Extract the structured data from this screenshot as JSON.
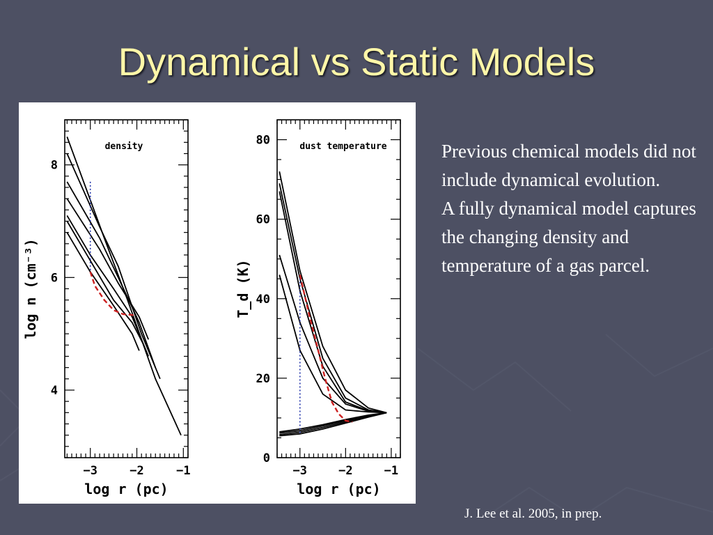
{
  "slide": {
    "title": "Dynamical vs Static Models",
    "text": [
      "Previous chemical models did not include dynamical evolution.",
      "A fully dynamical model captures the changing density and temperature of a gas parcel."
    ],
    "citation": "J. Lee et al. 2005, in prep."
  },
  "colors": {
    "background": "#4d5063",
    "title": "#fff7a8",
    "text": "#ffffff",
    "curve": "#000000",
    "dashed_track": "#cc2222",
    "dotted_track": "#2233aa"
  },
  "chart_data": [
    {
      "type": "line",
      "annotation": "density",
      "xlabel": "log r (pc)",
      "ylabel": "log n (cm⁻³)",
      "xlim": [
        -3.55,
        -0.9
      ],
      "ylim": [
        2.8,
        8.8
      ],
      "xticks": [
        -3,
        -2,
        -1
      ],
      "yticks": [
        4,
        6,
        8
      ],
      "grid": false,
      "series": [
        {
          "style": "solid",
          "points": [
            [
              -3.5,
              8.5
            ],
            [
              -2.7,
              6.7
            ],
            [
              -2.2,
              5.6
            ],
            [
              -1.6,
              4.2
            ],
            [
              -1.05,
              3.2
            ]
          ]
        },
        {
          "style": "solid",
          "points": [
            [
              -3.5,
              8.2
            ],
            [
              -2.8,
              6.9
            ],
            [
              -2.4,
              6.2
            ],
            [
              -1.9,
              5.0
            ],
            [
              -1.5,
              4.2
            ]
          ]
        },
        {
          "style": "solid",
          "points": [
            [
              -3.5,
              7.7
            ],
            [
              -2.8,
              6.7
            ],
            [
              -2.4,
              6.0
            ],
            [
              -1.95,
              5.2
            ],
            [
              -1.6,
              4.4
            ]
          ]
        },
        {
          "style": "solid",
          "points": [
            [
              -3.5,
              7.4
            ],
            [
              -2.8,
              6.5
            ],
            [
              -2.4,
              5.9
            ],
            [
              -1.95,
              5.3
            ],
            [
              -1.75,
              4.9
            ]
          ]
        },
        {
          "style": "solid",
          "points": [
            [
              -3.5,
              7.1
            ],
            [
              -3.0,
              6.4
            ],
            [
              -2.5,
              5.8
            ],
            [
              -2.1,
              5.3
            ],
            [
              -1.75,
              4.6
            ]
          ]
        },
        {
          "style": "solid",
          "points": [
            [
              -3.5,
              7.0
            ],
            [
              -3.0,
              6.3
            ],
            [
              -2.5,
              5.6
            ],
            [
              -2.1,
              5.2
            ],
            [
              -1.85,
              4.8
            ]
          ]
        },
        {
          "style": "solid",
          "points": [
            [
              -3.5,
              6.8
            ],
            [
              -3.0,
              6.1
            ],
            [
              -2.5,
              5.5
            ],
            [
              -2.1,
              5.0
            ],
            [
              -1.95,
              4.7
            ]
          ]
        },
        {
          "style": "dotted",
          "color": "#2233aa",
          "points": [
            [
              -3.0,
              7.7
            ],
            [
              -3.0,
              6.1
            ]
          ]
        },
        {
          "style": "dashed",
          "color": "#cc2222",
          "points": [
            [
              -3.0,
              6.1
            ],
            [
              -2.9,
              5.85
            ],
            [
              -2.7,
              5.6
            ],
            [
              -2.5,
              5.42
            ],
            [
              -2.3,
              5.35
            ],
            [
              -2.05,
              5.33
            ]
          ]
        }
      ]
    },
    {
      "type": "line",
      "annotation": "dust temperature",
      "xlabel": "log r (pc)",
      "ylabel": "T_d (K)",
      "xlim": [
        -3.5,
        -0.8
      ],
      "ylim": [
        0,
        85
      ],
      "xticks": [
        -3,
        -2,
        -1
      ],
      "yticks": [
        0,
        20,
        40,
        60,
        80
      ],
      "grid": false,
      "series": [
        {
          "style": "solid",
          "points": [
            [
              -3.45,
              72
            ],
            [
              -3.0,
              47
            ],
            [
              -2.5,
              28
            ],
            [
              -2.0,
              17
            ],
            [
              -1.5,
              12.5
            ],
            [
              -1.1,
              11.3
            ]
          ]
        },
        {
          "style": "solid",
          "points": [
            [
              -3.45,
              69
            ],
            [
              -3.0,
              45
            ],
            [
              -2.5,
              25
            ],
            [
              -2.0,
              15
            ],
            [
              -1.5,
              12
            ],
            [
              -1.1,
              11.3
            ]
          ]
        },
        {
          "style": "solid",
          "points": [
            [
              -3.45,
              67
            ],
            [
              -3.0,
              42
            ],
            [
              -2.5,
              23
            ],
            [
              -2.0,
              14
            ],
            [
              -1.5,
              11.8
            ],
            [
              -1.1,
              11.3
            ]
          ]
        },
        {
          "style": "solid",
          "points": [
            [
              -3.45,
              51
            ],
            [
              -3.0,
              34
            ],
            [
              -2.5,
              20
            ],
            [
              -2.0,
              13.5
            ],
            [
              -1.5,
              11.7
            ],
            [
              -1.1,
              11.3
            ]
          ]
        },
        {
          "style": "solid",
          "points": [
            [
              -3.45,
              46
            ],
            [
              -3.0,
              27
            ],
            [
              -2.5,
              16
            ],
            [
              -2.0,
              12
            ],
            [
              -1.5,
              11.5
            ],
            [
              -1.1,
              11.3
            ]
          ]
        },
        {
          "style": "solid",
          "points": [
            [
              -3.45,
              6.5
            ],
            [
              -3.0,
              7.2
            ],
            [
              -2.5,
              8.3
            ],
            [
              -2.0,
              9.6
            ],
            [
              -1.5,
              10.7
            ],
            [
              -1.1,
              11.3
            ]
          ]
        },
        {
          "style": "solid",
          "points": [
            [
              -3.45,
              6.2
            ],
            [
              -3.0,
              6.8
            ],
            [
              -2.5,
              8.0
            ],
            [
              -2.0,
              9.3
            ],
            [
              -1.5,
              10.5
            ],
            [
              -1.1,
              11.3
            ]
          ]
        },
        {
          "style": "solid",
          "points": [
            [
              -3.45,
              5.8
            ],
            [
              -3.0,
              6.4
            ],
            [
              -2.5,
              7.6
            ],
            [
              -2.0,
              9.0
            ],
            [
              -1.5,
              10.4
            ],
            [
              -1.1,
              11.3
            ]
          ]
        },
        {
          "style": "solid",
          "points": [
            [
              -3.45,
              5.5
            ],
            [
              -3.0,
              6.0
            ],
            [
              -2.5,
              7.2
            ],
            [
              -2.0,
              8.7
            ],
            [
              -1.5,
              10.2
            ],
            [
              -1.1,
              11.3
            ]
          ]
        },
        {
          "style": "dotted",
          "color": "#2233aa",
          "points": [
            [
              -3.0,
              46
            ],
            [
              -3.0,
              6
            ]
          ]
        },
        {
          "style": "dashed",
          "color": "#cc2222",
          "points": [
            [
              -3.0,
              46
            ],
            [
              -2.8,
              36
            ],
            [
              -2.6,
              27
            ],
            [
              -2.45,
              20
            ],
            [
              -2.3,
              14
            ],
            [
              -2.15,
              11
            ],
            [
              -2.0,
              9.3
            ],
            [
              -1.85,
              9.0
            ]
          ]
        }
      ]
    }
  ]
}
